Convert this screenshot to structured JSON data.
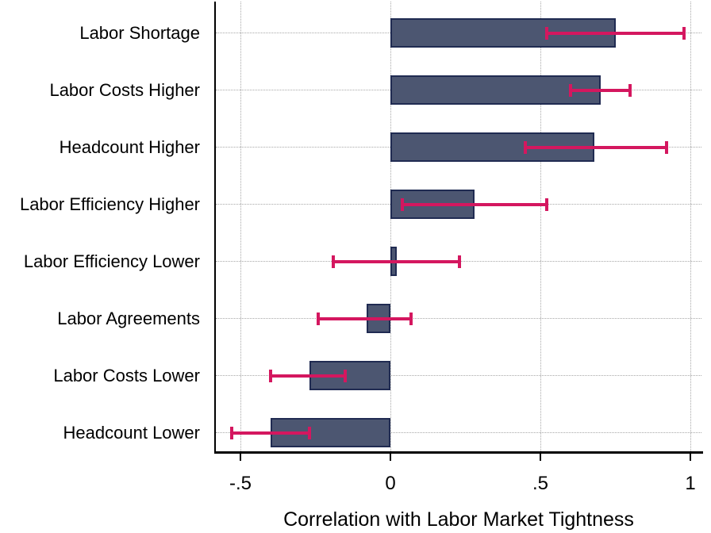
{
  "chart_data": {
    "type": "bar",
    "orientation": "horizontal",
    "title": "",
    "xlabel": "Correlation with Labor Market Tightness",
    "ylabel": "",
    "xlim": [
      -0.58,
      1.04
    ],
    "grid": "dotted",
    "legend": "none",
    "categories": [
      "Labor Shortage",
      "Labor Costs Higher",
      "Headcount Higher",
      "Labor Efficiency Higher",
      "Labor Efficiency Lower",
      "Labor Agreements",
      "Labor Costs Lower",
      "Headcount Lower"
    ],
    "series": [
      {
        "name": "Correlation with Labor Market Tightness",
        "values": [
          0.75,
          0.7,
          0.68,
          0.28,
          0.02,
          -0.08,
          -0.27,
          -0.4
        ]
      }
    ],
    "error_bars": {
      "low": [
        0.52,
        0.6,
        0.45,
        0.04,
        -0.19,
        -0.24,
        -0.4,
        -0.53
      ],
      "high": [
        0.98,
        0.8,
        0.92,
        0.52,
        0.23,
        0.07,
        -0.15,
        -0.27
      ]
    },
    "xticks": [
      {
        "value": -0.5,
        "label": "-.5"
      },
      {
        "value": 0,
        "label": "0"
      },
      {
        "value": 0.5,
        "label": ".5"
      },
      {
        "value": 1,
        "label": "1"
      }
    ],
    "colors": {
      "bar_fill": "#4c5671",
      "bar_border": "#202b52",
      "error_bar": "#d4175f",
      "gridline": "#a8a8a8",
      "axis": "#000000",
      "background": "#ffffff",
      "text": "#000000"
    }
  }
}
